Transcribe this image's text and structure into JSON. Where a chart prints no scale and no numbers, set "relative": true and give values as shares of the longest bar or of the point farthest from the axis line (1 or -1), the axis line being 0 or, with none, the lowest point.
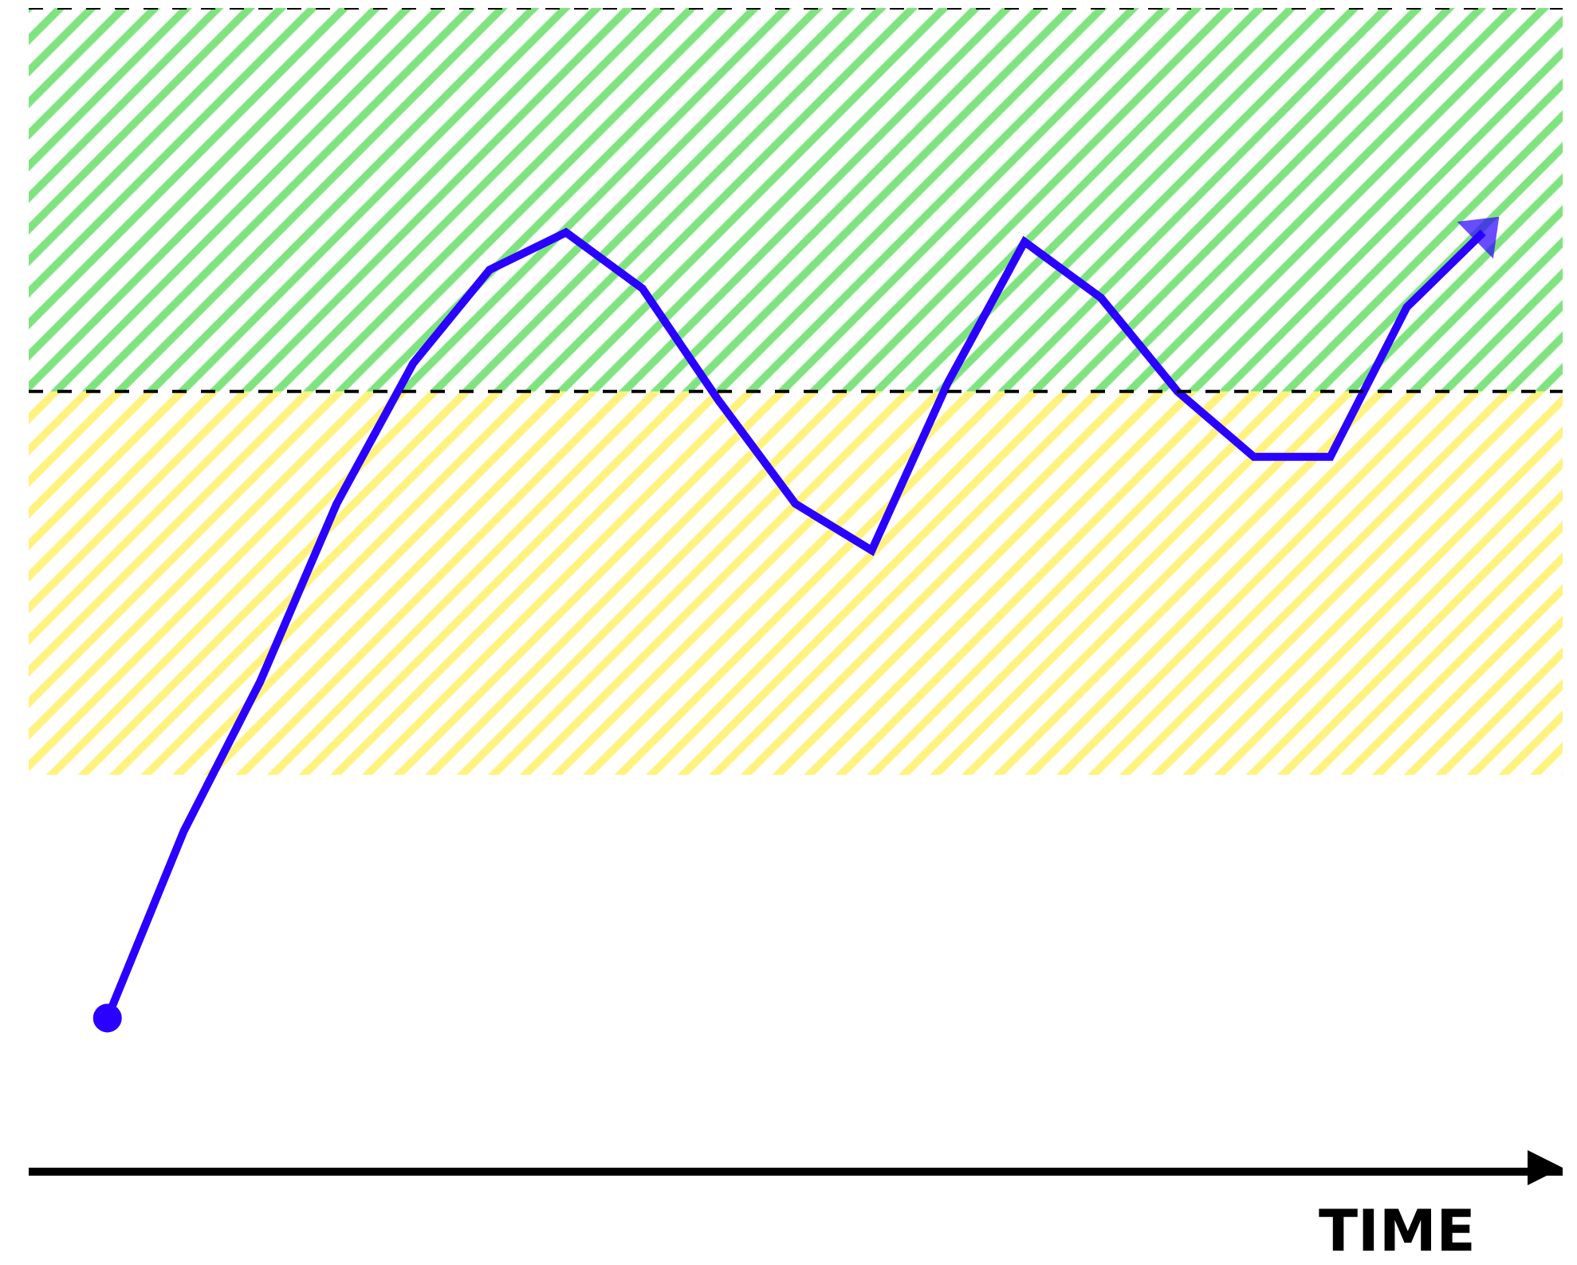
{
  "chart_data": {
    "type": "line",
    "relative": true,
    "xlabel": "TIME",
    "categories": [
      null,
      null,
      null,
      null,
      null,
      null,
      null,
      null,
      null,
      null,
      null,
      null,
      null,
      null,
      null,
      null,
      null,
      null,
      null
    ],
    "series": [
      {
        "color": "#2a00ff",
        "values": [
          0.16,
          0.36,
          0.52,
          0.71,
          0.86,
          0.96,
          1.0,
          0.94,
          0.82,
          0.71,
          0.66,
          0.84,
          0.99,
          0.93,
          0.83,
          0.76,
          0.76,
          0.92,
          1.0
        ]
      }
    ],
    "bands": [
      {
        "axis": "y",
        "from": 0.42,
        "to": 0.83,
        "color": "#ffe600"
      },
      {
        "axis": "y",
        "from": 0.83,
        "to": 1.24,
        "color": "#00c800"
      }
    ],
    "ref_lines": [
      {
        "axis": "y",
        "value": 0.83,
        "color": "#000000",
        "line_style": "dashed"
      },
      {
        "axis": "y",
        "value": 1.24,
        "color": "#000000",
        "line_style": "dashed"
      }
    ]
  }
}
